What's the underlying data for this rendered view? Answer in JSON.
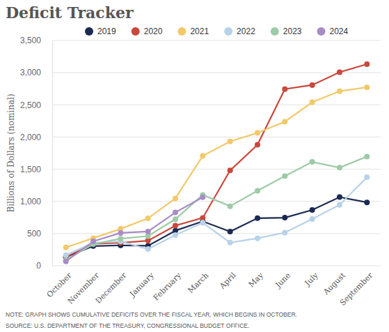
{
  "chart_data": {
    "type": "line",
    "title": "Deficit Tracker",
    "y_label": "Billions of Dollars (nominal)",
    "note": "NOTE: GRAPH SHOWS CUMULATIVE DEFICITS OVER THE FISCAL YEAR, WHICH BEGINS IN OCTOBER.",
    "source": "SOURCE: U.S. DEPARTMENT OF THE TREASURY, CONGRESSIONAL BUDGET OFFICE.",
    "categories": [
      "October",
      "November",
      "December",
      "January",
      "February",
      "March",
      "April",
      "May",
      "June",
      "July",
      "August",
      "September"
    ],
    "series": [
      {
        "name": "2019",
        "color": "#1b2a52",
        "values": [
          134,
          305,
          317,
          310,
          545,
          690,
          531,
          739,
          747,
          867,
          1067,
          984
        ]
      },
      {
        "name": "2020",
        "color": "#c9483c",
        "values": [
          134,
          343,
          357,
          389,
          624,
          743,
          1481,
          1880,
          2744,
          2807,
          3007,
          3132
        ]
      },
      {
        "name": "2021",
        "color": "#f2c96a",
        "values": [
          284,
          429,
          573,
          736,
          1047,
          1706,
          1932,
          2064,
          2238,
          2540,
          2711,
          2772
        ]
      },
      {
        "name": "2022",
        "color": "#b8d2e8",
        "values": [
          165,
          357,
          378,
          259,
          476,
          669,
          360,
          426,
          515,
          726,
          946,
          1375
        ]
      },
      {
        "name": "2023",
        "color": "#9dcba6",
        "values": [
          88,
          336,
          421,
          460,
          723,
          1101,
          925,
          1164,
          1393,
          1614,
          1525,
          1695
        ]
      },
      {
        "name": "2024",
        "color": "#a88cc8",
        "values": [
          67,
          380,
          510,
          532,
          828,
          1065,
          null,
          null,
          null,
          null,
          null,
          null
        ]
      }
    ],
    "ylim": [
      0,
      3500
    ],
    "yticks": [
      0,
      500,
      {
        "value": 1000,
        "label": "1,000"
      },
      {
        "value": 1500,
        "label": "1,500"
      },
      {
        "value": 2000,
        "label": "2,000"
      },
      {
        "value": 2500,
        "label": "2,500"
      },
      {
        "value": 3000,
        "label": "3,000"
      },
      {
        "value": 3500,
        "label": "3,500"
      }
    ],
    "grid": true,
    "legend": "top",
    "marker": "circle"
  }
}
